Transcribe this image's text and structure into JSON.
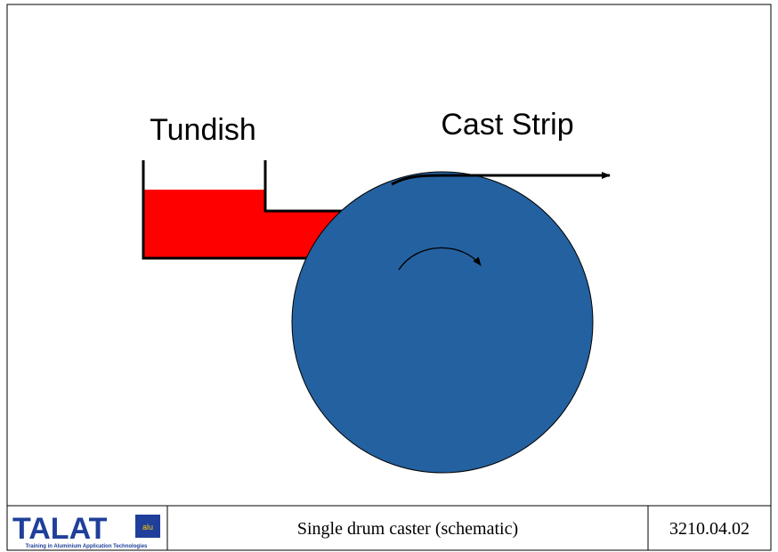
{
  "labels": {
    "tundish": "Tundish",
    "strip": "Cast Strip"
  },
  "footer": {
    "logo": "TALAT",
    "logo_badge": "alu",
    "logo_tagline": "Training in Aluminium Application Technologies",
    "caption": "Single drum caster (schematic)",
    "code": "3210.04.02"
  }
}
